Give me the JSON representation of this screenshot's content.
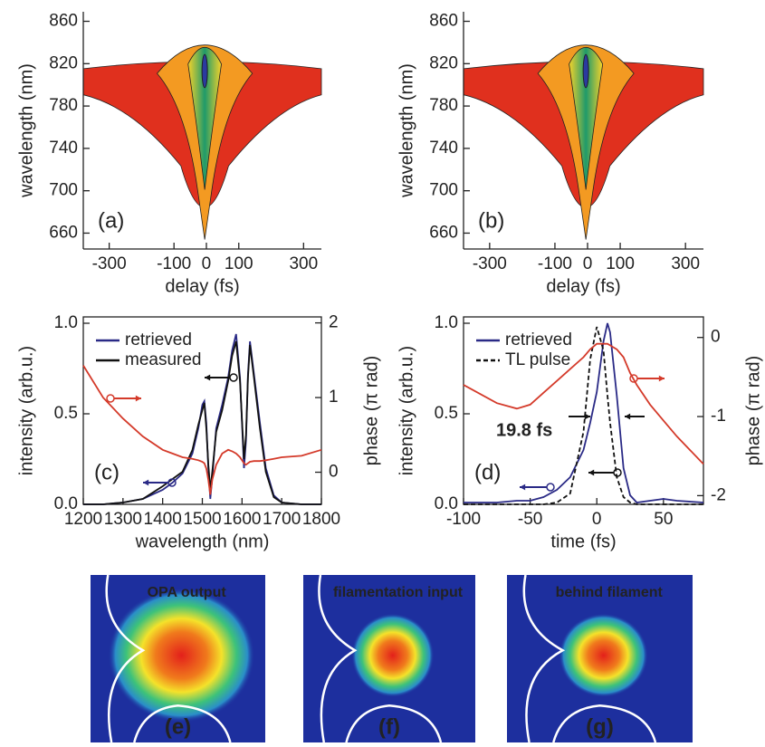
{
  "chart_data": [
    {
      "type": "contour",
      "panel": "(a)",
      "xlabel": "delay (fs)",
      "ylabel": "wavelength (nm)",
      "xlim": [
        -380,
        355
      ],
      "ylim": [
        645,
        869
      ],
      "xticks": [
        -300,
        -100,
        0,
        100,
        300
      ],
      "yticks": [
        660,
        700,
        740,
        780,
        820,
        860
      ]
    },
    {
      "type": "contour",
      "panel": "(b)",
      "xlabel": "delay (fs)",
      "ylabel": "wavelength (nm)",
      "xlim": [
        -380,
        355
      ],
      "ylim": [
        645,
        869
      ],
      "xticks": [
        -300,
        -100,
        0,
        100,
        300
      ],
      "yticks": [
        660,
        700,
        740,
        780,
        820,
        860
      ]
    },
    {
      "type": "line",
      "panel": "(c)",
      "xlabel": "wavelength (nm)",
      "ylabel": "intensity (arb.u.)",
      "y2label": "phase (π rad)",
      "xlim": [
        1200,
        1800
      ],
      "xticks": [
        1200,
        1300,
        1400,
        1500,
        1600,
        1700,
        1800
      ],
      "ylim": [
        0,
        1.035
      ],
      "yticks": [
        {
          "value": 0,
          "label": "0.0"
        },
        0.5,
        {
          "value": 1,
          "label": "1.0"
        }
      ],
      "y2lim": [
        -0.43,
        2.08
      ],
      "y2ticks": [
        0,
        1,
        2
      ],
      "x": [
        1200,
        1250,
        1300,
        1350,
        1400,
        1425,
        1450,
        1475,
        1490,
        1500,
        1505,
        1510,
        1515,
        1520,
        1525,
        1535,
        1550,
        1565,
        1575,
        1585,
        1595,
        1605,
        1610,
        1615,
        1620,
        1630,
        1645,
        1660,
        1680,
        1700,
        1750,
        1800
      ],
      "series": [
        {
          "name": "retrieved",
          "color": "#2a2a86",
          "values": [
            0,
            0,
            0.01,
            0.03,
            0.08,
            0.12,
            0.17,
            0.28,
            0.42,
            0.55,
            0.57,
            0.45,
            0.2,
            0.03,
            0.15,
            0.42,
            0.55,
            0.7,
            0.85,
            0.94,
            0.7,
            0.2,
            0.35,
            0.72,
            0.9,
            0.72,
            0.45,
            0.2,
            0.05,
            0.01,
            0,
            0
          ]
        },
        {
          "name": "measured",
          "color": "#111111",
          "values": [
            0,
            0,
            0.01,
            0.03,
            0.1,
            0.14,
            0.18,
            0.3,
            0.44,
            0.52,
            0.56,
            0.42,
            0.22,
            0.08,
            0.18,
            0.4,
            0.52,
            0.68,
            0.82,
            0.9,
            0.68,
            0.25,
            0.38,
            0.7,
            0.88,
            0.7,
            0.42,
            0.18,
            0.04,
            0.01,
            0,
            0
          ]
        },
        {
          "color": "#d43a2a",
          "axis": "y2",
          "values": [
            1.43,
            1.0,
            0.72,
            0.48,
            0.3,
            0.25,
            0.2,
            0.18,
            0.16,
            0.14,
            0.12,
            0.05,
            -0.1,
            -0.3,
            -0.1,
            0.1,
            0.25,
            0.3,
            0.28,
            0.25,
            0.2,
            0.12,
            0.1,
            0.12,
            0.14,
            0.15,
            0.15,
            0.16,
            0.18,
            0.2,
            0.22,
            0.3
          ]
        }
      ]
    },
    {
      "type": "line",
      "panel": "(d)",
      "xlabel": "time (fs)",
      "ylabel": "intensity (arb.u.)",
      "y2label": "phase (π rad)",
      "annotation": "19.8 fs",
      "xlim": [
        -100,
        80
      ],
      "xticks": [
        -100,
        -50,
        0,
        50
      ],
      "ylim": [
        0,
        1.035
      ],
      "yticks": [
        {
          "value": 0,
          "label": "0.0"
        },
        0.5,
        {
          "value": 1,
          "label": "1.0"
        }
      ],
      "y2lim": [
        -2.11,
        0.26
      ],
      "y2ticks": [
        0,
        -1,
        -2
      ],
      "x": [
        -100,
        -75,
        -60,
        -50,
        -40,
        -30,
        -20,
        -10,
        -5,
        0,
        5,
        8,
        10,
        15,
        20,
        25,
        30,
        40,
        50,
        60,
        80
      ],
      "series": [
        {
          "name": "retrieved",
          "color": "#2a2a86",
          "values": [
            0.01,
            0.01,
            0.02,
            0.02,
            0.04,
            0.08,
            0.15,
            0.3,
            0.45,
            0.62,
            0.9,
            1.0,
            0.95,
            0.6,
            0.2,
            0.05,
            0.01,
            0.02,
            0.03,
            0.02,
            0.01
          ]
        },
        {
          "name": "TL pulse",
          "color": "#111111",
          "style": "dashed",
          "values": [
            0,
            0,
            0,
            0,
            0,
            0.01,
            0.06,
            0.4,
            0.8,
            0.98,
            0.85,
            0.6,
            0.45,
            0.15,
            0.04,
            0.01,
            0,
            0,
            0,
            0,
            0
          ]
        },
        {
          "color": "#d43a2a",
          "axis": "y2",
          "values": [
            -0.6,
            -0.83,
            -0.9,
            -0.85,
            -0.7,
            -0.55,
            -0.4,
            -0.25,
            -0.15,
            -0.08,
            -0.08,
            -0.08,
            -0.1,
            -0.15,
            -0.25,
            -0.45,
            -0.6,
            -0.85,
            -1.05,
            -1.25,
            -1.6
          ]
        }
      ]
    },
    {
      "type": "image",
      "panel": "(e)",
      "caption": "OPA output"
    },
    {
      "type": "image",
      "panel": "(f)",
      "caption": "filamentation input"
    },
    {
      "type": "image",
      "panel": "(g)",
      "caption": "behind filament"
    }
  ]
}
